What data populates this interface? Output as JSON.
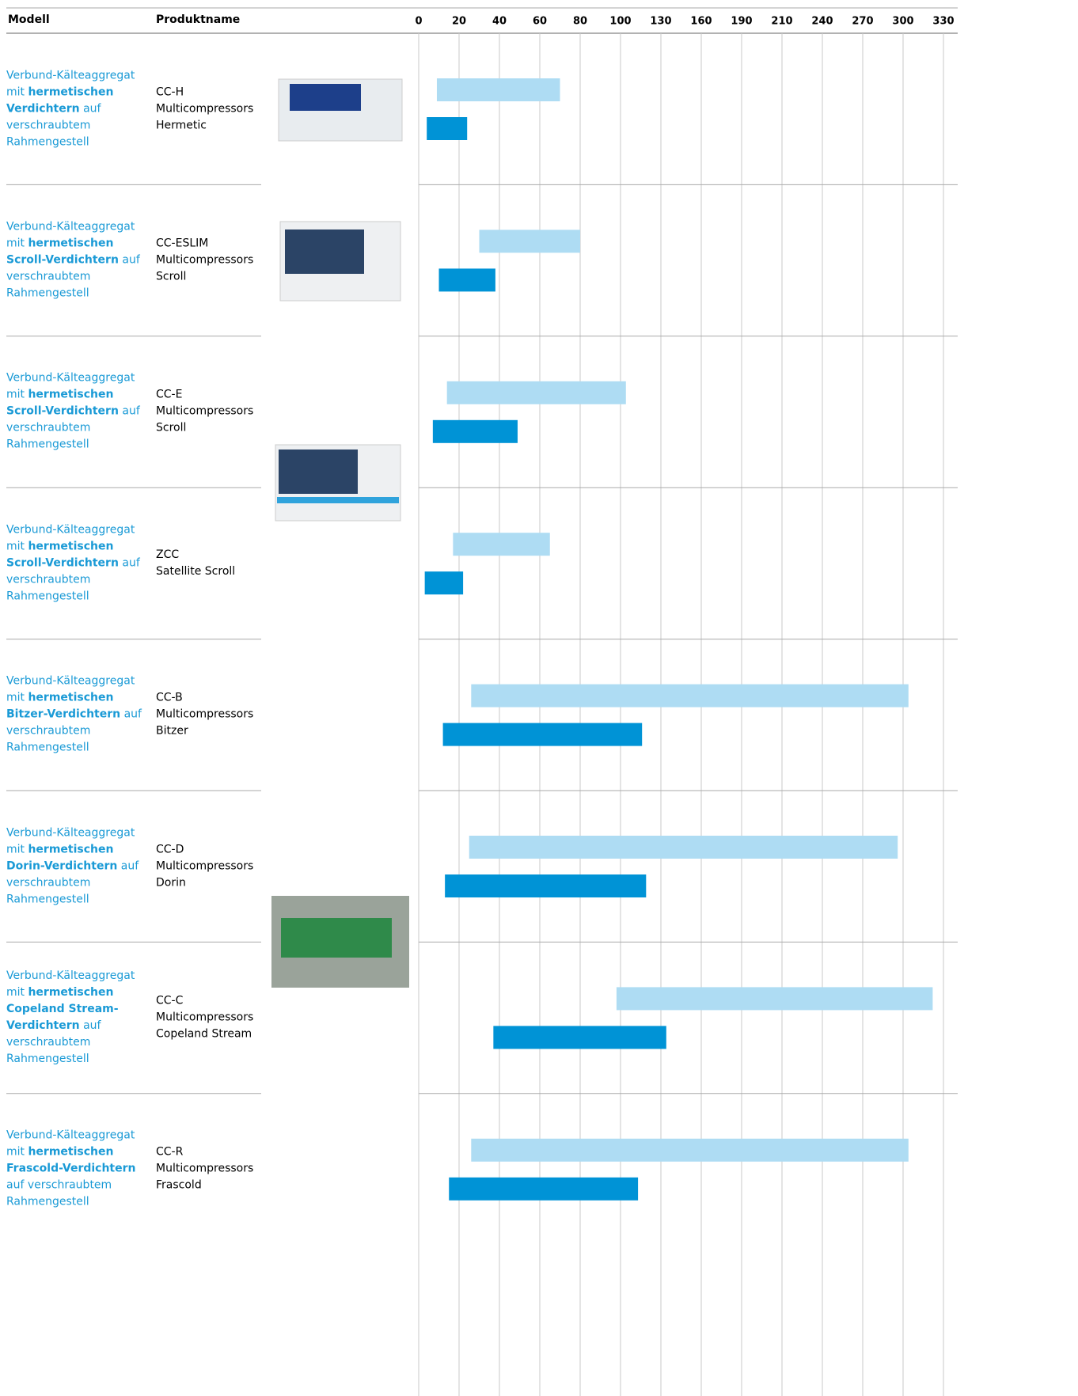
{
  "header": {
    "model": "Modell",
    "product": "Produktname"
  },
  "axis": {
    "ticks": [
      0,
      20,
      40,
      60,
      80,
      100,
      130,
      160,
      190,
      210,
      240,
      270,
      300,
      330
    ]
  },
  "colors": {
    "light": "#aedcf3",
    "dark": "#0093d6"
  },
  "rows": [
    {
      "model_pre": "Verbund-Kälteaggregat mit ",
      "model_bold": "hermetischen Verdichtern",
      "model_post": " auf verschraubtem Rahmengestell",
      "product": [
        "CC-H",
        "Multicompressors",
        "Hermetic"
      ],
      "light": [
        9,
        70
      ],
      "dark": [
        4,
        24
      ]
    },
    {
      "model_pre": "Verbund-Kälteaggregat mit ",
      "model_bold": "hermetischen Scroll-Verdichtern",
      "model_post": " auf verschraubtem Rahmengestell",
      "product": [
        "CC-ESLIM",
        "Multicompressors",
        "Scroll"
      ],
      "light": [
        30,
        80
      ],
      "dark": [
        10,
        38
      ]
    },
    {
      "model_pre": "Verbund-Kälteaggregat mit ",
      "model_bold": "hermetischen Scroll-Verdichtern",
      "model_post": " auf verschraubtem Rahmengestell",
      "product": [
        "CC-E",
        "Multicompressors",
        "Scroll"
      ],
      "light": [
        14,
        104
      ],
      "dark": [
        7,
        49
      ]
    },
    {
      "model_pre": "Verbund-Kälteaggregat mit ",
      "model_bold": "hermetischen Scroll-Verdichtern",
      "model_post": " auf verschraubtem Rahmengestell",
      "product": [
        "ZCC",
        "Satellite Scroll"
      ],
      "light": [
        17,
        65
      ],
      "dark": [
        3,
        22
      ]
    },
    {
      "model_pre": "Verbund-Kälteaggregat mit ",
      "model_bold": "hermetischen Bitzer-Verdichtern",
      "model_post": " auf verschraubtem Rahmengestell",
      "product": [
        "CC-B",
        "Multicompressors",
        "Bitzer"
      ],
      "light": [
        26,
        304
      ],
      "dark": [
        12,
        116
      ]
    },
    {
      "model_pre": "Verbund-Kälteaggregat mit ",
      "model_bold": "hermetischen Dorin-Verdichtern",
      "model_post": " auf verschraubtem Rahmengestell",
      "product": [
        "CC-D",
        "Multicompressors",
        "Dorin"
      ],
      "light": [
        25,
        296
      ],
      "dark": [
        13,
        119
      ]
    },
    {
      "model_pre": "Verbund-Kälteaggregat mit ",
      "model_bold": "hermetischen Copeland Stream-Verdichtern",
      "model_post": " auf verschraubtem Rahmengestell",
      "product": [
        "CC-C",
        "Multicompressors",
        "Copeland Stream"
      ],
      "light": [
        98,
        322
      ],
      "dark": [
        37,
        134
      ]
    },
    {
      "model_pre": "Verbund-Kälteaggregat mit ",
      "model_bold": "hermetischen Frascold-Verdichtern",
      "model_post": " auf verschraubtem Rahmengestell",
      "product": [
        "CC-R",
        "Multicompressors",
        "Frascold"
      ],
      "light": [
        26,
        304
      ],
      "dark": [
        15,
        113
      ]
    }
  ]
}
